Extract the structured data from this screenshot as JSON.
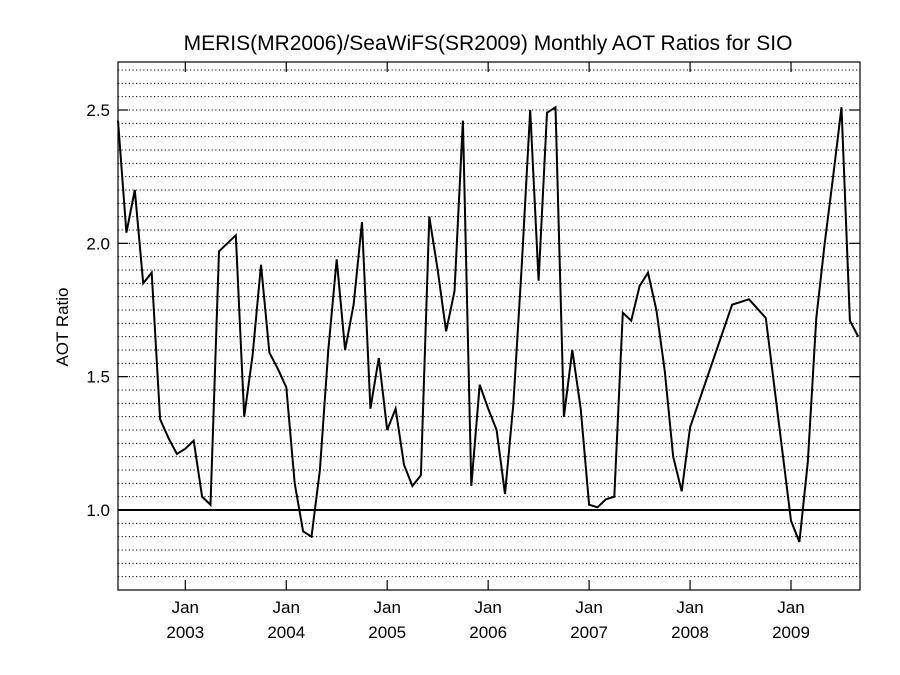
{
  "chart_data": {
    "type": "line",
    "title": "MERIS(MR2006)/SeaWiFS(SR2009) Monthly AOT Ratios for SIO",
    "xlabel": "",
    "ylabel": "AOT Ratio",
    "xlim": [
      "2002-05",
      "2009-08"
    ],
    "ylim": [
      0.7,
      2.68
    ],
    "yticks": [
      1.0,
      1.5,
      2.0,
      2.5
    ],
    "ytick_labels": [
      "1.0",
      "1.5",
      "2.0",
      "2.5"
    ],
    "xticks": [
      {
        "date": "2003-01",
        "month_label": "Jan",
        "year_label": "2003"
      },
      {
        "date": "2004-01",
        "month_label": "Jan",
        "year_label": "2004"
      },
      {
        "date": "2005-01",
        "month_label": "Jan",
        "year_label": "2005"
      },
      {
        "date": "2006-01",
        "month_label": "Jan",
        "year_label": "2006"
      },
      {
        "date": "2007-01",
        "month_label": "Jan",
        "year_label": "2007"
      },
      {
        "date": "2008-01",
        "month_label": "Jan",
        "year_label": "2008"
      },
      {
        "date": "2009-01",
        "month_label": "Jan",
        "year_label": "2009"
      }
    ],
    "grid": "horizontal dotted lines every 0.05",
    "reference_line": 1.0,
    "series": [
      {
        "color": "#000000",
        "points": [
          [
            "2002-05",
            2.46
          ],
          [
            "2002-06",
            2.04
          ],
          [
            "2002-07",
            2.2
          ],
          [
            "2002-08",
            1.85
          ],
          [
            "2002-09",
            1.89
          ],
          [
            "2002-10",
            1.34
          ],
          [
            "2002-11",
            1.27
          ],
          [
            "2002-12",
            1.21
          ],
          [
            "2003-01",
            1.23
          ],
          [
            "2003-02",
            1.26
          ],
          [
            "2003-03",
            1.05
          ],
          [
            "2003-04",
            1.02
          ],
          [
            "2003-05",
            1.97
          ],
          [
            "2003-06",
            2.0
          ],
          [
            "2003-07",
            2.03
          ],
          [
            "2003-08",
            1.35
          ],
          [
            "2003-09",
            1.58
          ],
          [
            "2003-10",
            1.92
          ],
          [
            "2003-11",
            1.59
          ],
          [
            "2003-12",
            1.53
          ],
          [
            "2004-01",
            1.46
          ],
          [
            "2004-02",
            1.1
          ],
          [
            "2004-03",
            0.92
          ],
          [
            "2004-04",
            0.9
          ],
          [
            "2004-05",
            1.15
          ],
          [
            "2004-06",
            1.6
          ],
          [
            "2004-07",
            1.94
          ],
          [
            "2004-08",
            1.6
          ],
          [
            "2004-09",
            1.77
          ],
          [
            "2004-10",
            2.08
          ],
          [
            "2004-11",
            1.38
          ],
          [
            "2004-12",
            1.57
          ],
          [
            "2005-01",
            1.3
          ],
          [
            "2005-02",
            1.38
          ],
          [
            "2005-03",
            1.17
          ],
          [
            "2005-04",
            1.09
          ],
          [
            "2005-05",
            1.13
          ],
          [
            "2005-06",
            2.1
          ],
          [
            "2005-07",
            1.9
          ],
          [
            "2005-08",
            1.67
          ],
          [
            "2005-09",
            1.82
          ],
          [
            "2005-10",
            2.46
          ],
          [
            "2005-11",
            1.09
          ],
          [
            "2005-12",
            1.47
          ],
          [
            "2006-01",
            1.38
          ],
          [
            "2006-02",
            1.3
          ],
          [
            "2006-03",
            1.06
          ],
          [
            "2006-04",
            1.4
          ],
          [
            "2006-05",
            1.92
          ],
          [
            "2006-06",
            2.5
          ],
          [
            "2006-07",
            1.86
          ],
          [
            "2006-08",
            2.49
          ],
          [
            "2006-09",
            2.51
          ],
          [
            "2006-10",
            1.35
          ],
          [
            "2006-11",
            1.6
          ],
          [
            "2006-12",
            1.38
          ],
          [
            "2007-01",
            1.02
          ],
          [
            "2007-02",
            1.01
          ],
          [
            "2007-03",
            1.04
          ],
          [
            "2007-04",
            1.05
          ],
          [
            "2007-05",
            1.74
          ],
          [
            "2007-06",
            1.71
          ],
          [
            "2007-07",
            1.84
          ],
          [
            "2007-08",
            1.89
          ],
          [
            "2007-09",
            1.75
          ],
          [
            "2007-10",
            1.52
          ],
          [
            "2007-11",
            1.2
          ],
          [
            "2007-12",
            1.07
          ],
          [
            "2008-01",
            1.31
          ],
          [
            "2008-06",
            1.77
          ],
          [
            "2008-08",
            1.79
          ],
          [
            "2008-10",
            1.72
          ],
          [
            "2009-01",
            0.96
          ],
          [
            "2009-02",
            0.88
          ],
          [
            "2009-03",
            1.18
          ],
          [
            "2009-04",
            1.72
          ],
          [
            "2009-05",
            2.0
          ],
          [
            "2009-06",
            2.25
          ],
          [
            "2009-07",
            2.51
          ],
          [
            "2009-08",
            1.71
          ],
          [
            "2009-09",
            1.65
          ]
        ]
      }
    ]
  }
}
